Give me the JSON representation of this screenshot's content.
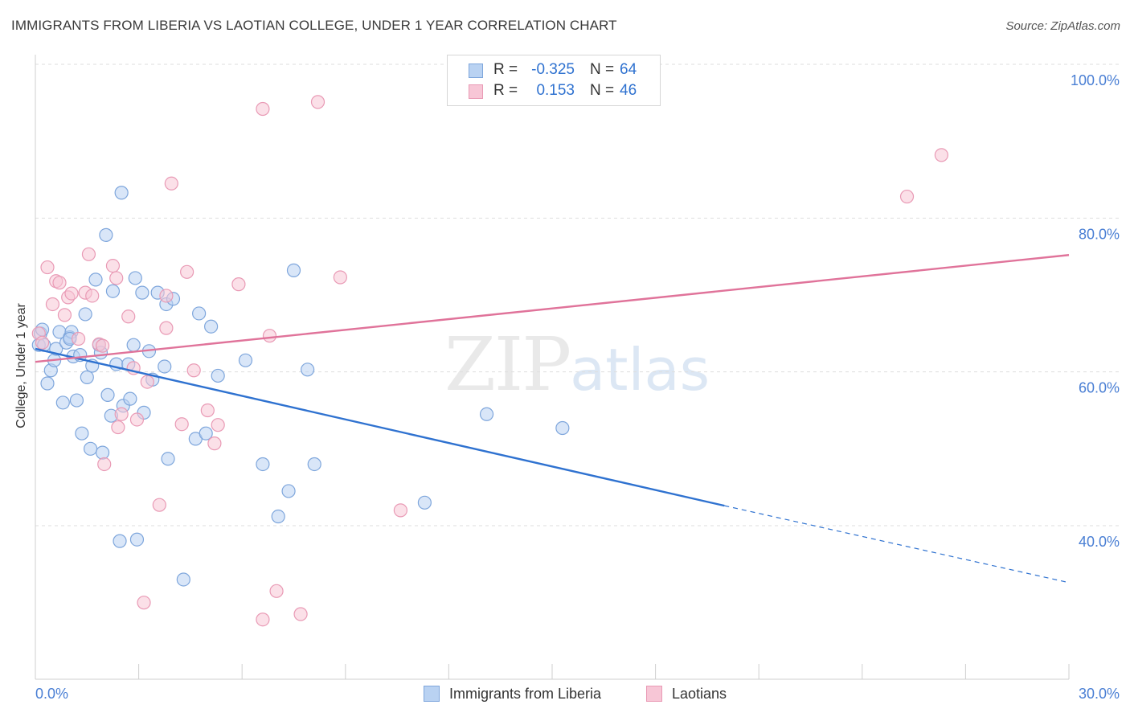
{
  "header": {
    "title": "IMMIGRANTS FROM LIBERIA VS LAOTIAN COLLEGE, UNDER 1 YEAR CORRELATION CHART",
    "source": "Source: ZipAtlas.com"
  },
  "stats": [
    {
      "r_label": "R =",
      "r_value": "-0.325",
      "n_label": "N =",
      "n_value": "64"
    },
    {
      "r_label": "R =",
      "r_value": "0.153",
      "n_label": "N =",
      "n_value": "46"
    }
  ],
  "legend": {
    "items": [
      "Immigrants from Liberia",
      "Laotians"
    ]
  },
  "watermark": {
    "zip": "ZIP",
    "atlas": "atlas"
  },
  "colors": {
    "blue_fill": "#b9d2f2",
    "blue_stroke": "#7ea6dc",
    "blue_line": "#2f72d0",
    "pink_fill": "#f7c6d6",
    "pink_stroke": "#e99ab5",
    "pink_line": "#e0739a",
    "tick_label": "#4a7fd4",
    "grid": "#dedede"
  },
  "chart_data": {
    "type": "scatter",
    "title": "IMMIGRANTS FROM LIBERIA VS LAOTIAN COLLEGE, UNDER 1 YEAR CORRELATION CHART",
    "xlabel": "",
    "ylabel": "College, Under 1 year",
    "xlim": [
      0,
      30
    ],
    "ylim": [
      20,
      102
    ],
    "x_tick_labels": [
      "0.0%",
      "30.0%"
    ],
    "y_ticks": [
      40,
      60,
      80,
      100
    ],
    "y_tick_labels": [
      "40.0%",
      "60.0%",
      "80.0%",
      "100.0%"
    ],
    "grid": true,
    "legend_position": "bottom-center",
    "series": [
      {
        "name": "Immigrants from Liberia",
        "color": "#b9d2f2",
        "points": [
          [
            0.1,
            63.5
          ],
          [
            0.15,
            65
          ],
          [
            0.2,
            65.5
          ],
          [
            0.25,
            63.5
          ],
          [
            0.35,
            58.5
          ],
          [
            0.45,
            60.2
          ],
          [
            0.55,
            61.5
          ],
          [
            0.6,
            63
          ],
          [
            0.7,
            65.2
          ],
          [
            0.8,
            56
          ],
          [
            0.9,
            63.8
          ],
          [
            1.0,
            64.5
          ],
          [
            1.05,
            65.2
          ],
          [
            1.1,
            62
          ],
          [
            1.2,
            56.3
          ],
          [
            1.3,
            62.2
          ],
          [
            1.35,
            52
          ],
          [
            1.45,
            67.5
          ],
          [
            1.5,
            59.3
          ],
          [
            1.6,
            50
          ],
          [
            1.65,
            60.8
          ],
          [
            1.75,
            72
          ],
          [
            1.85,
            63.5
          ],
          [
            1.9,
            62.5
          ],
          [
            1.95,
            49.5
          ],
          [
            2.05,
            77.8
          ],
          [
            2.1,
            57
          ],
          [
            2.2,
            54.3
          ],
          [
            2.35,
            61
          ],
          [
            2.45,
            38
          ],
          [
            2.5,
            83.3
          ],
          [
            2.55,
            55.6
          ],
          [
            2.7,
            61
          ],
          [
            2.75,
            56.5
          ],
          [
            2.85,
            63.5
          ],
          [
            2.9,
            72.2
          ],
          [
            2.95,
            38.2
          ],
          [
            3.1,
            70.3
          ],
          [
            3.15,
            54.7
          ],
          [
            3.3,
            62.7
          ],
          [
            3.4,
            59
          ],
          [
            3.55,
            70.3
          ],
          [
            3.75,
            60.7
          ],
          [
            3.8,
            68.8
          ],
          [
            3.85,
            48.7
          ],
          [
            4.0,
            69.5
          ],
          [
            4.3,
            33
          ],
          [
            4.65,
            51.3
          ],
          [
            4.75,
            67.6
          ],
          [
            4.95,
            52
          ],
          [
            5.1,
            65.9
          ],
          [
            5.3,
            59.5
          ],
          [
            6.1,
            61.5
          ],
          [
            6.6,
            48
          ],
          [
            7.05,
            41.2
          ],
          [
            7.35,
            44.5
          ],
          [
            7.5,
            73.2
          ],
          [
            7.9,
            60.3
          ],
          [
            8.1,
            48
          ],
          [
            11.3,
            43
          ],
          [
            13.1,
            54.5
          ],
          [
            15.3,
            52.7
          ],
          [
            2.25,
            70.5
          ],
          [
            1.0,
            64.3
          ]
        ]
      },
      {
        "name": "Laotians",
        "color": "#f7c6d6",
        "points": [
          [
            0.1,
            65
          ],
          [
            0.2,
            63.8
          ],
          [
            0.35,
            73.6
          ],
          [
            0.5,
            68.8
          ],
          [
            0.6,
            71.8
          ],
          [
            0.7,
            71.6
          ],
          [
            0.85,
            67.4
          ],
          [
            0.95,
            69.7
          ],
          [
            1.05,
            70.2
          ],
          [
            1.25,
            64.3
          ],
          [
            1.45,
            70.3
          ],
          [
            1.55,
            75.3
          ],
          [
            1.65,
            69.9
          ],
          [
            1.85,
            63.6
          ],
          [
            1.95,
            63.4
          ],
          [
            2.0,
            48
          ],
          [
            2.25,
            73.8
          ],
          [
            2.35,
            72.2
          ],
          [
            2.4,
            52.8
          ],
          [
            2.5,
            54.5
          ],
          [
            2.7,
            67.2
          ],
          [
            2.85,
            60.5
          ],
          [
            2.95,
            53.8
          ],
          [
            3.15,
            30
          ],
          [
            3.25,
            58.7
          ],
          [
            3.6,
            42.7
          ],
          [
            3.8,
            65.7
          ],
          [
            3.8,
            69.9
          ],
          [
            3.95,
            84.5
          ],
          [
            4.25,
            53.2
          ],
          [
            4.4,
            73
          ],
          [
            4.6,
            60.2
          ],
          [
            5.0,
            55
          ],
          [
            5.2,
            50.7
          ],
          [
            5.3,
            53.1
          ],
          [
            5.9,
            71.4
          ],
          [
            6.6,
            27.8
          ],
          [
            6.6,
            94.2
          ],
          [
            6.8,
            64.7
          ],
          [
            7.0,
            31.5
          ],
          [
            7.7,
            28.5
          ],
          [
            8.2,
            95.1
          ],
          [
            8.85,
            72.3
          ],
          [
            10.6,
            42
          ],
          [
            25.3,
            82.8
          ],
          [
            26.3,
            88.2
          ]
        ]
      }
    ],
    "trend_lines": [
      {
        "series": "Immigrants from Liberia",
        "solid": [
          [
            0,
            63
          ],
          [
            20,
            42.6
          ]
        ],
        "dashed": [
          [
            20,
            42.6
          ],
          [
            30,
            32.6
          ]
        ]
      },
      {
        "series": "Laotians",
        "solid": [
          [
            0,
            61.3
          ],
          [
            30,
            75.2
          ]
        ]
      }
    ]
  }
}
